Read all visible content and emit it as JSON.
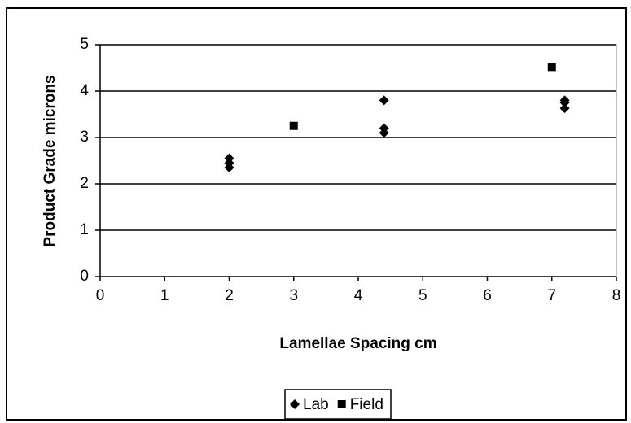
{
  "chart_data": {
    "type": "scatter",
    "x_label": "Lamellae Spacing cm",
    "y_label": "Product Grade microns",
    "xlim": [
      0,
      8
    ],
    "xticks": [
      0,
      1,
      2,
      3,
      4,
      5,
      6,
      7,
      8
    ],
    "ylim": [
      0,
      5
    ],
    "yticks": [
      0,
      1,
      2,
      3,
      4,
      5
    ],
    "grid": true,
    "legend": "bottom",
    "series": [
      {
        "name": "Lab",
        "color": "#000000",
        "marker": "diamond",
        "x": [
          2,
          2,
          2,
          4.4,
          4.4,
          4.4,
          7.2,
          7.2,
          7.2
        ],
        "values": [
          2.55,
          2.45,
          2.35,
          3.8,
          3.2,
          3.1,
          3.8,
          3.75,
          3.63
        ]
      },
      {
        "name": "Field",
        "color": "#000000",
        "marker": "square",
        "x": [
          3,
          7
        ],
        "values": [
          3.25,
          4.52
        ]
      }
    ]
  }
}
